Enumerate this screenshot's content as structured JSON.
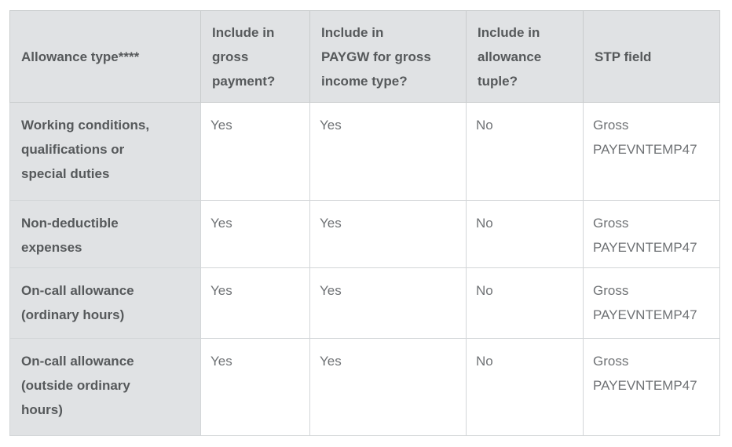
{
  "table": {
    "columns": [
      {
        "label": "Allowance type****"
      },
      {
        "label": "Include in\ngross\npayment?"
      },
      {
        "label": "Include in\nPAYGW for gross\nincome type?"
      },
      {
        "label": "Include in\nallowance\ntuple?"
      },
      {
        "label": "STP field"
      }
    ],
    "rows": [
      {
        "cells": [
          "Working conditions,\nqualifications or\nspecial duties",
          "Yes",
          "Yes",
          "No",
          "Gross\nPAYEVNTEMP47"
        ]
      },
      {
        "cells": [
          "Non-deductible\nexpenses",
          "Yes",
          "Yes",
          "No",
          "Gross\nPAYEVNTEMP47"
        ]
      },
      {
        "cells": [
          "On-call allowance\n(ordinary hours)",
          "Yes",
          "Yes",
          "No",
          "Gross\nPAYEVNTEMP47"
        ]
      },
      {
        "cells": [
          "On-call allowance\n(outside ordinary\nhours)",
          "Yes",
          "Yes",
          "No",
          "Gross\nPAYEVNTEMP47"
        ]
      }
    ]
  },
  "colors": {
    "header_background": "#e0e2e4",
    "header_text": "#56595b",
    "body_text": "#6f7275",
    "border": "#d3d6d8",
    "cell_background": "#ffffff"
  }
}
